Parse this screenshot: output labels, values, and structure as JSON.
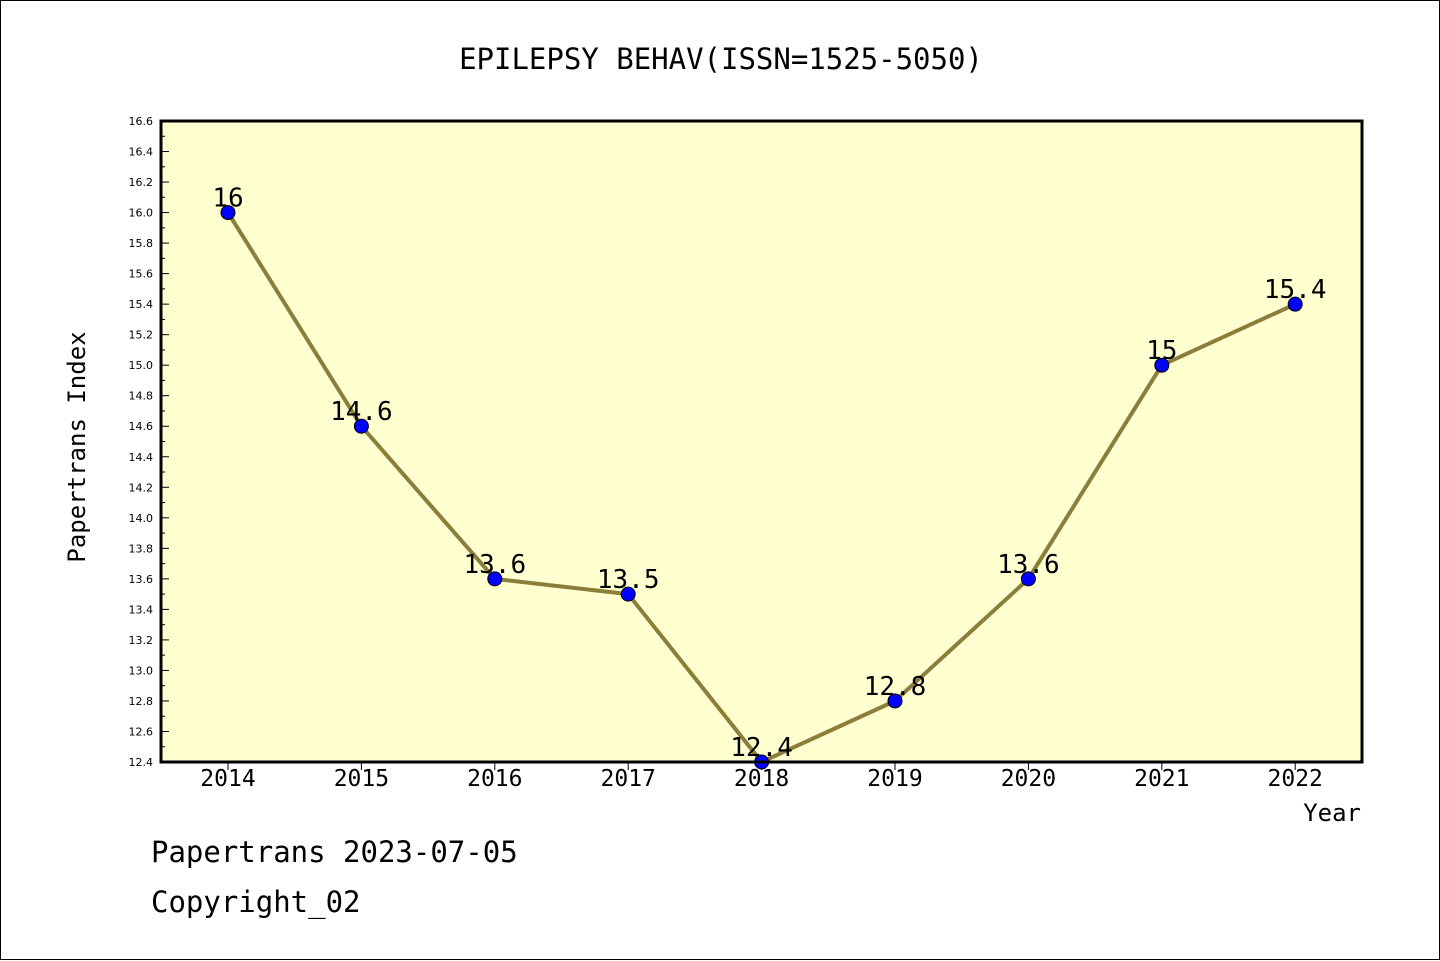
{
  "chart_data": {
    "type": "line",
    "title": "EPILEPSY BEHAV(ISSN=1525-5050)",
    "xlabel": "Year",
    "ylabel": "Papertrans Index",
    "categories": [
      "2014",
      "2015",
      "2016",
      "2017",
      "2018",
      "2019",
      "2020",
      "2021",
      "2022"
    ],
    "series": [
      {
        "values": [
          16,
          14.6,
          13.6,
          13.5,
          12.4,
          12.8,
          13.6,
          15,
          15.4
        ],
        "data_labels": [
          "16",
          "14.6",
          "13.6",
          "13.5",
          "12.4",
          "12.8",
          "13.6",
          "15",
          "15.4"
        ]
      }
    ],
    "ylim": [
      12.4,
      16.6
    ],
    "yticks": [
      "12.4",
      "12.6",
      "12.8",
      "13.0",
      "13.2",
      "13.4",
      "13.6",
      "13.8",
      "14.0",
      "14.2",
      "14.4",
      "14.6",
      "14.8",
      "15.0",
      "15.2",
      "15.4",
      "15.6",
      "15.8",
      "16.0",
      "16.2",
      "16.4",
      "16.6"
    ],
    "grid": false,
    "legend": "none",
    "colors": {
      "plot_background": "#ffffd0",
      "line": "#8b7d3a",
      "marker": "#0000ff",
      "axis": "#000000"
    }
  },
  "footer": {
    "line1": "Papertrans 2023-07-05",
    "line2": "Copyright_02"
  }
}
